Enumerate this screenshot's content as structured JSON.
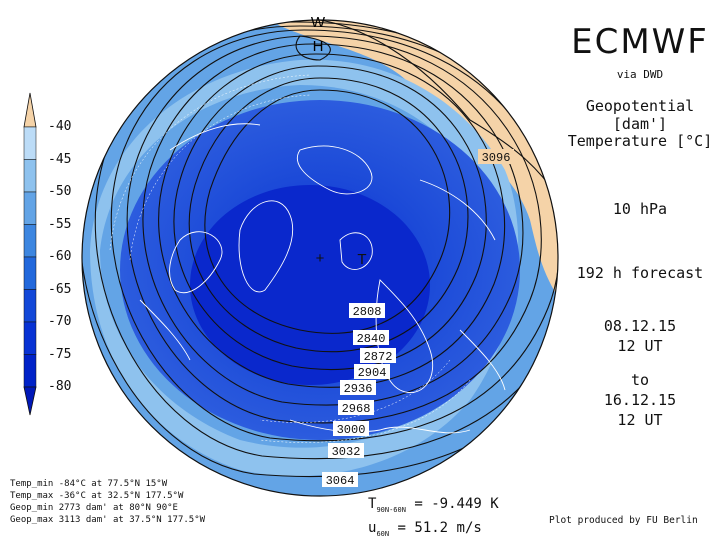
{
  "header": {
    "brand": "ECMWF",
    "via": "via DWD",
    "param1": "Geopotential [dam']",
    "param2": "Temperature [°C]",
    "level": "10 hPa",
    "forecast": "192 h forecast",
    "init_date": "08.12.15",
    "init_time": "12 UT",
    "to": "to",
    "valid_date": "16.12.15",
    "valid_time": "12 UT"
  },
  "colorbar": {
    "labels": [
      "-40",
      "-45",
      "-50",
      "-55",
      "-60",
      "-65",
      "-70",
      "-75",
      "-80"
    ],
    "colors": [
      "#f5d3a8",
      "#bcdcf7",
      "#8ec2ee",
      "#63a4e6",
      "#3d86e0",
      "#2268dc",
      "#1248d8",
      "#0832d4",
      "#0018b8"
    ]
  },
  "map": {
    "contour_labels": [
      "2808",
      "2840",
      "2872",
      "2904",
      "2936",
      "2968",
      "3000",
      "3032",
      "3064",
      "3096"
    ],
    "high_marks": [
      "W",
      "H"
    ],
    "low_mark": "T"
  },
  "stats": {
    "temp_min": "Temp_min -84°C at 77.5°N 15°W",
    "temp_max": "Temp_max -36°C at 32.5°N 177.5°W",
    "geop_min": "Geop_min 2773 dam' at 80°N 90°E",
    "geop_max": "Geop_max 3113 dam' at 37.5°N 177.5°W"
  },
  "indices": {
    "t_label": "T",
    "t_sub": "90N-60N",
    "t_value": "= -9.449 K",
    "u_label": "u",
    "u_sub": "60N",
    "u_value": "= 51.2 m/s"
  },
  "credit": "Plot produced by FU Berlin",
  "colors": {
    "warm": "#f5d3a8",
    "cold_core": "#0c2ad0",
    "background_blue": "#63a4e6"
  }
}
